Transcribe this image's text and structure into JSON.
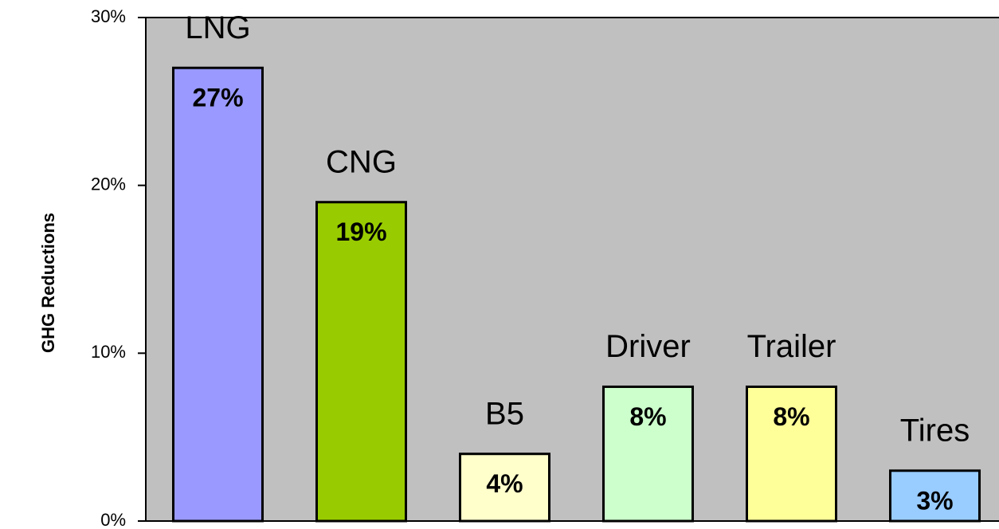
{
  "chart_data": {
    "type": "bar",
    "y_label": "GHG Reductions",
    "categories": [
      "LNG",
      "CNG",
      "B5",
      "Driver",
      "Trailer",
      "Tires"
    ],
    "values": [
      27,
      19,
      4,
      8,
      8,
      3
    ],
    "value_labels": [
      "27%",
      "19%",
      "4%",
      "8%",
      "8%",
      "3%"
    ],
    "colors": [
      "#9999ff",
      "#99cc00",
      "#ffffcc",
      "#ccffcc",
      "#ffff99",
      "#99ccff"
    ],
    "ylim": [
      0,
      30
    ],
    "yticks": [
      {
        "value": 0,
        "label": "0%"
      },
      {
        "value": 10,
        "label": "10%"
      },
      {
        "value": 20,
        "label": "20%"
      },
      {
        "value": 30,
        "label": "30%"
      }
    ],
    "grid": false
  }
}
